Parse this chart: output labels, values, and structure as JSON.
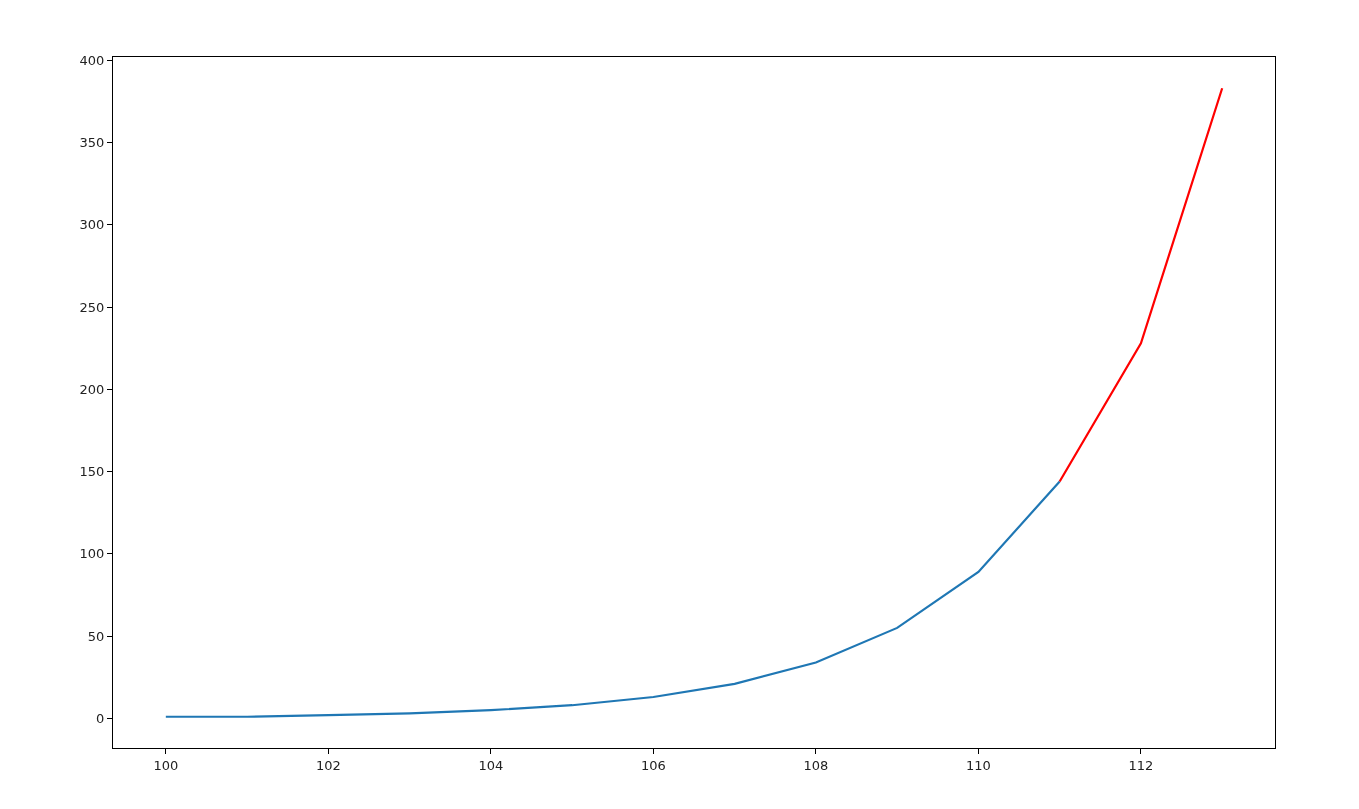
{
  "chart_data": {
    "type": "line",
    "series": [
      {
        "color": "#1f77b4",
        "x": [
          100,
          101,
          102,
          103,
          104,
          105,
          106,
          107,
          108,
          109,
          110,
          111
        ],
        "values": [
          1,
          1,
          2,
          3,
          5,
          8,
          13,
          21,
          34,
          55,
          89,
          144
        ]
      },
      {
        "color": "#ff0000",
        "x": [
          111,
          112,
          113
        ],
        "values": [
          144,
          228,
          383
        ]
      }
    ],
    "xlim": [
      99.35,
      113.65
    ],
    "xticks": [
      100,
      102,
      104,
      106,
      108,
      110,
      112
    ],
    "ylim": [
      -18,
      402
    ],
    "yticks": [
      0,
      50,
      100,
      150,
      200,
      250,
      300,
      350,
      400
    ],
    "grid": false,
    "marker": "none",
    "line_style": "solid"
  }
}
